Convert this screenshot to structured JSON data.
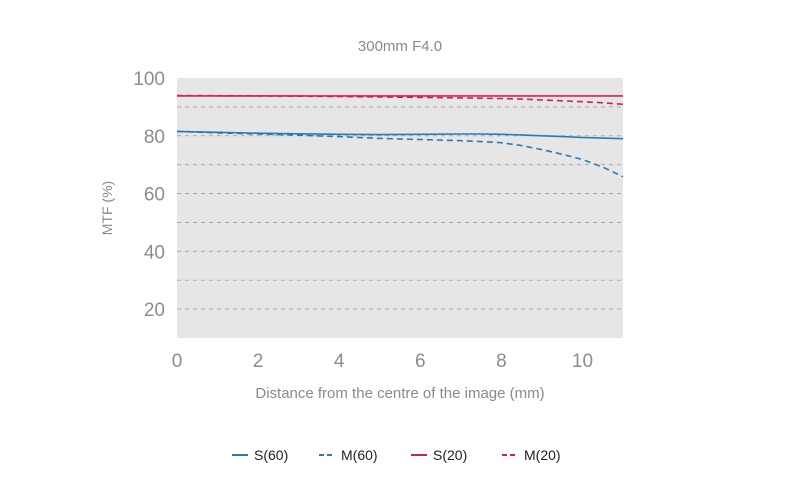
{
  "chart_data": {
    "type": "line",
    "title": "300mm F4.0",
    "xlabel": "Distance from the centre of the image (mm)",
    "ylabel": "MTF (%)",
    "xlim": [
      0,
      11
    ],
    "ylim": [
      10,
      100
    ],
    "x_ticks": [
      "0",
      "2",
      "4",
      "6",
      "8",
      "10"
    ],
    "y_ticks": [
      "20",
      "40",
      "60",
      "80",
      "100"
    ],
    "grid": "horizontal dashed, every 10",
    "legend_position": "bottom",
    "colors": {
      "blue": "#2a7bb5",
      "magenta": "#d81b60",
      "plot_bg": "#e6e6e7",
      "grid": "#a9a9a9"
    },
    "series": [
      {
        "name": "S(60)",
        "color": "#2a7bb5",
        "style": "solid",
        "x": [
          0,
          1,
          2,
          3,
          4,
          5,
          6,
          7,
          7.5,
          8,
          8.5,
          9,
          9.5,
          10,
          10.5,
          11
        ],
        "y": [
          81.5,
          81.2,
          80.9,
          80.7,
          80.5,
          80.4,
          80.5,
          80.6,
          80.6,
          80.5,
          80.3,
          80.0,
          79.7,
          79.4,
          79.2,
          79.0
        ]
      },
      {
        "name": "M(60)",
        "color": "#2a7bb5",
        "style": "dashed",
        "x": [
          0,
          1,
          2,
          3,
          4,
          5,
          6,
          7,
          7.5,
          8,
          8.5,
          9,
          9.5,
          10,
          10.5,
          11
        ],
        "y": [
          81.5,
          81.0,
          80.6,
          80.2,
          79.7,
          79.1,
          78.7,
          78.3,
          78.0,
          77.6,
          76.6,
          75.2,
          73.6,
          71.8,
          69.2,
          65.8
        ]
      },
      {
        "name": "S(20)",
        "color": "#d81b60",
        "style": "solid",
        "x": [
          0,
          2,
          4,
          6,
          8,
          9,
          10,
          11
        ],
        "y": [
          93.8,
          93.8,
          93.8,
          93.8,
          93.8,
          93.8,
          93.8,
          93.8
        ]
      },
      {
        "name": "M(20)",
        "color": "#d81b60",
        "style": "dashed",
        "x": [
          0,
          2,
          4,
          6,
          7,
          8,
          8.5,
          9,
          9.5,
          10,
          10.5,
          11
        ],
        "y": [
          93.9,
          93.8,
          93.6,
          93.3,
          93.1,
          92.9,
          92.7,
          92.4,
          92.1,
          91.8,
          91.4,
          90.9
        ]
      }
    ]
  }
}
